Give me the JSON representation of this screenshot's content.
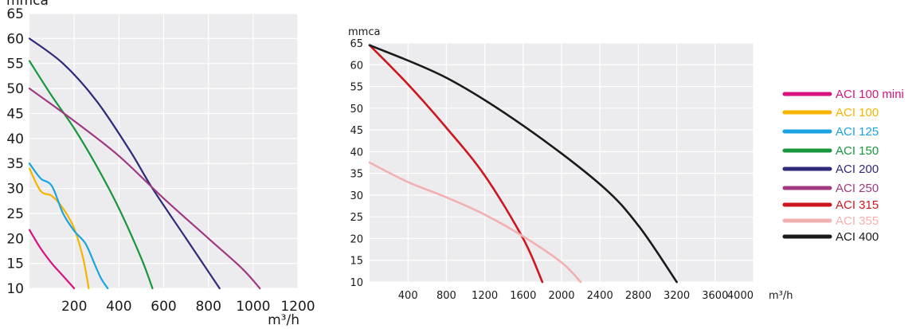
{
  "chart_data": [
    {
      "type": "line",
      "ylabel": "mmca",
      "xlabel": "m³/h",
      "xlim": [
        0,
        1200
      ],
      "ylim": [
        10,
        65
      ],
      "x_ticks": [
        "200",
        "400",
        "600",
        "800",
        "1000",
        "1200"
      ],
      "y_ticks": [
        "10",
        "15",
        "20",
        "25",
        "30",
        "35",
        "40",
        "45",
        "50",
        "55",
        "60",
        "65"
      ],
      "grid": true,
      "series": [
        {
          "name": "ACI 100 mini",
          "color": "#d6127f",
          "points": [
            [
              0,
              21.7
            ],
            [
              50,
              18
            ],
            [
              100,
              15
            ],
            [
              150,
              12.5
            ],
            [
              200,
              10
            ]
          ]
        },
        {
          "name": "ACI 100",
          "color": "#f5b400",
          "points": [
            [
              0,
              34
            ],
            [
              50,
              29.5
            ],
            [
              100,
              28.5
            ],
            [
              150,
              26
            ],
            [
              200,
              22
            ],
            [
              240,
              16
            ],
            [
              265,
              10
            ]
          ]
        },
        {
          "name": "ACI 125",
          "color": "#1aa3e0",
          "points": [
            [
              0,
              35
            ],
            [
              50,
              32
            ],
            [
              100,
              30.5
            ],
            [
              150,
              25
            ],
            [
              200,
              21.5
            ],
            [
              250,
              19
            ],
            [
              290,
              15
            ],
            [
              320,
              12
            ],
            [
              350,
              10
            ]
          ]
        },
        {
          "name": "ACI 150",
          "color": "#17963c",
          "points": [
            [
              0,
              55.5
            ],
            [
              100,
              48.5
            ],
            [
              200,
              42
            ],
            [
              300,
              34.5
            ],
            [
              400,
              26
            ],
            [
              500,
              16
            ],
            [
              550,
              10
            ]
          ]
        },
        {
          "name": "ACI 200",
          "color": "#2e2a7a",
          "points": [
            [
              0,
              60
            ],
            [
              150,
              55
            ],
            [
              300,
              47.5
            ],
            [
              450,
              37.5
            ],
            [
              550,
              30
            ],
            [
              700,
              20
            ],
            [
              850,
              10
            ]
          ]
        },
        {
          "name": "ACI 250",
          "color": "#a0397f",
          "points": [
            [
              0,
              50
            ],
            [
              200,
              43.5
            ],
            [
              400,
              36.5
            ],
            [
              600,
              28
            ],
            [
              800,
              20
            ],
            [
              950,
              14
            ],
            [
              1030,
              10
            ]
          ]
        }
      ]
    },
    {
      "type": "line",
      "ylabel": "mmca",
      "xlabel": "m³/h",
      "xlim": [
        0,
        4000
      ],
      "ylim": [
        10,
        65
      ],
      "x_ticks": [
        "400",
        "800",
        "1200",
        "1600",
        "2000",
        "2400",
        "2800",
        "3200",
        "3600",
        "4000"
      ],
      "y_ticks": [
        "10",
        "15",
        "20",
        "25",
        "30",
        "35",
        "40",
        "45",
        "50",
        "55",
        "60",
        "65"
      ],
      "grid": true,
      "series": [
        {
          "name": "ACI 315",
          "color": "#cc1721",
          "points": [
            [
              0,
              64.5
            ],
            [
              400,
              55.5
            ],
            [
              800,
              45.5
            ],
            [
              1200,
              34.5
            ],
            [
              1600,
              20
            ],
            [
              1800,
              10
            ]
          ]
        },
        {
          "name": "ACI 355",
          "color": "#f2b0b0",
          "points": [
            [
              0,
              37.5
            ],
            [
              400,
              33
            ],
            [
              800,
              29.5
            ],
            [
              1200,
              25.5
            ],
            [
              1600,
              20.5
            ],
            [
              2000,
              14.5
            ],
            [
              2200,
              10
            ]
          ]
        },
        {
          "name": "ACI 400",
          "color": "#1a1a1a",
          "points": [
            [
              0,
              64.5
            ],
            [
              800,
              57
            ],
            [
              1600,
              46
            ],
            [
              2400,
              32.5
            ],
            [
              2800,
              23
            ],
            [
              3200,
              10
            ]
          ]
        }
      ]
    }
  ],
  "legend": {
    "entries": [
      {
        "label": "ACI 100 mini",
        "color": "#d6127f"
      },
      {
        "label": "ACI 100",
        "color": "#f5b400"
      },
      {
        "label": "ACI 125",
        "color": "#1aa3e0"
      },
      {
        "label": "ACI 150",
        "color": "#17963c"
      },
      {
        "label": "ACI 200",
        "color": "#2e2a7a"
      },
      {
        "label": "ACI 250",
        "color": "#a0397f"
      },
      {
        "label": "ACI 315",
        "color": "#cc1721"
      },
      {
        "label": "ACI 355",
        "color": "#f2b0b0"
      },
      {
        "label": "ACI 400",
        "color": "#1a1a1a"
      }
    ]
  }
}
